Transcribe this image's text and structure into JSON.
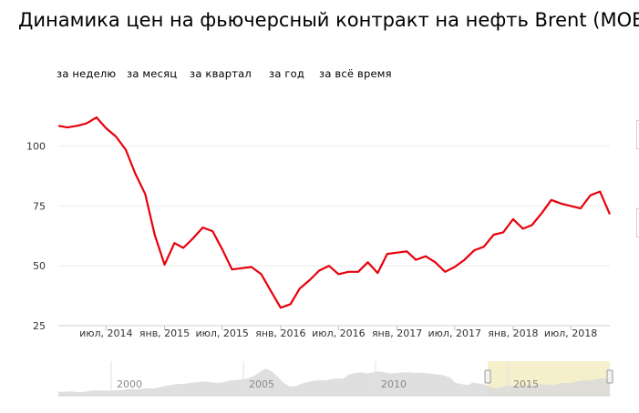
{
  "title": "Динамика цен на фьючерсный контракт на нефть Brent (MOEX,",
  "period_tabs": [
    "за неделю",
    "за месяц",
    "за квартал",
    "за год",
    "за всё время"
  ],
  "chart_data": {
    "type": "line",
    "title": "Динамика цен на фьючерсный контракт на нефть Brent (MOEX,",
    "series": [
      {
        "color": "#e8000b",
        "x": [
          "2014-02-01",
          "2014-03-01",
          "2014-04-01",
          "2014-05-01",
          "2014-06-01",
          "2014-07-01",
          "2014-08-01",
          "2014-09-01",
          "2014-10-01",
          "2014-11-01",
          "2014-12-01",
          "2015-01-01",
          "2015-02-01",
          "2015-03-01",
          "2015-04-01",
          "2015-05-01",
          "2015-06-01",
          "2015-07-01",
          "2015-08-01",
          "2015-09-01",
          "2015-10-01",
          "2015-11-01",
          "2015-12-01",
          "2016-01-01",
          "2016-02-01",
          "2016-03-01",
          "2016-04-01",
          "2016-05-01",
          "2016-06-01",
          "2016-07-01",
          "2016-08-01",
          "2016-09-01",
          "2016-10-01",
          "2016-11-01",
          "2016-12-01",
          "2017-01-01",
          "2017-02-01",
          "2017-03-01",
          "2017-04-01",
          "2017-05-01",
          "2017-06-01",
          "2017-07-01",
          "2017-08-01",
          "2017-09-01",
          "2017-10-01",
          "2017-11-01",
          "2017-12-01",
          "2018-01-01",
          "2018-02-01",
          "2018-03-01",
          "2018-04-01",
          "2018-05-01",
          "2018-06-01",
          "2018-07-01",
          "2018-08-01",
          "2018-09-01",
          "2018-10-01",
          "2018-11-01"
        ],
        "values": [
          108.5,
          107.8,
          108.5,
          109.5,
          112,
          107.5,
          104,
          98.5,
          88.5,
          80,
          63,
          50.5,
          59.5,
          57.5,
          61.5,
          66,
          64.5,
          57,
          48.5,
          49,
          49.5,
          46.5,
          39.5,
          32.5,
          34,
          40.5,
          44,
          48,
          50,
          46.5,
          47.5,
          47.5,
          51.5,
          47,
          55,
          55.5,
          56,
          52.5,
          54,
          51.5,
          47.5,
          49.5,
          52.5,
          56.5,
          58,
          63,
          64,
          69.5,
          65.5,
          67,
          72,
          77.5,
          76,
          75,
          74,
          79.5,
          81,
          71.5
        ]
      }
    ],
    "xlabel": "",
    "ylabel": "",
    "x_tick_labels": [
      "июл, 2014",
      "янв, 2015",
      "июл, 2015",
      "янв, 2016",
      "июл, 2016",
      "янв, 2017",
      "июл, 2017",
      "янв, 2018",
      "июл, 2018"
    ],
    "y_ticks": [
      25,
      50,
      75,
      100
    ],
    "ylim": [
      25,
      120
    ],
    "grid": "horizontal",
    "legend": "none"
  },
  "navigator": {
    "year_labels": [
      "2000",
      "2005",
      "2010",
      "2015"
    ],
    "highlight_color": "#f5efcc",
    "area_color": "#d9d9d9",
    "overview_values": [
      20,
      19,
      21,
      18,
      17,
      22,
      26,
      25,
      24,
      26,
      27,
      29,
      32,
      31,
      33,
      36,
      35,
      41,
      47,
      52,
      57,
      56,
      61,
      65,
      67,
      69,
      64,
      62,
      66,
      74,
      76,
      78,
      85,
      95,
      115,
      132,
      118,
      92,
      62,
      45,
      46,
      57,
      66,
      72,
      76,
      74,
      79,
      84,
      82,
      103,
      110,
      113,
      108,
      112,
      117,
      113,
      108,
      110,
      112,
      113,
      111,
      112,
      109,
      107,
      103,
      99,
      88,
      62,
      56,
      52,
      65,
      58,
      54,
      41,
      35,
      44,
      50,
      46,
      49,
      52,
      50,
      56,
      54,
      52,
      55,
      63,
      60,
      65,
      72,
      74,
      76,
      80,
      86,
      76
    ]
  }
}
